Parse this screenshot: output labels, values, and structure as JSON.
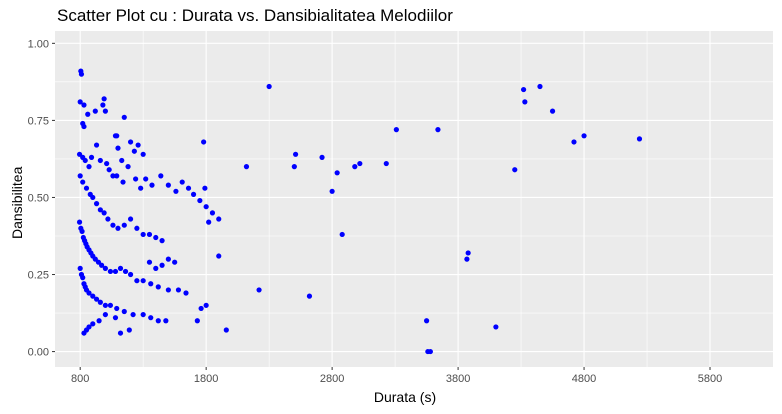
{
  "chart_data": {
    "type": "scatter",
    "title": "Scatter Plot cu : Durata vs. Dansibialitatea Melodiilor",
    "xlabel": "Durata (s)",
    "ylabel": "Dansibilitea",
    "xlim": [
      600,
      6300
    ],
    "ylim": [
      -0.05,
      1.04
    ],
    "x_ticks": [
      800,
      1800,
      2800,
      3800,
      4800,
      5800
    ],
    "y_ticks": [
      0.0,
      0.25,
      0.5,
      0.75,
      1.0
    ],
    "x_tick_labels": [
      "800",
      "1800",
      "2800",
      "3800",
      "4800",
      "5800"
    ],
    "y_tick_labels": [
      "0.00",
      "0.25",
      "0.50",
      "0.75",
      "1.00"
    ],
    "grid": true,
    "colors": {
      "points": "#0000ff",
      "panel": "#ebebeb",
      "grid": "#ffffff"
    },
    "points": [
      [
        805,
        0.91
      ],
      [
        810,
        0.9
      ],
      [
        800,
        0.81
      ],
      [
        820,
        0.74
      ],
      [
        830,
        0.73
      ],
      [
        860,
        0.77
      ],
      [
        830,
        0.8
      ],
      [
        920,
        0.78
      ],
      [
        980,
        0.8
      ],
      [
        990,
        0.82
      ],
      [
        1000,
        0.78
      ],
      [
        1080,
        0.7
      ],
      [
        1090,
        0.7
      ],
      [
        1150,
        0.76
      ],
      [
        1200,
        0.68
      ],
      [
        1260,
        0.67
      ],
      [
        1300,
        0.64
      ],
      [
        1230,
        0.65
      ],
      [
        1130,
        0.62
      ],
      [
        1100,
        0.66
      ],
      [
        795,
        0.64
      ],
      [
        820,
        0.63
      ],
      [
        840,
        0.62
      ],
      [
        870,
        0.6
      ],
      [
        890,
        0.63
      ],
      [
        930,
        0.67
      ],
      [
        960,
        0.62
      ],
      [
        1010,
        0.61
      ],
      [
        1030,
        0.59
      ],
      [
        1060,
        0.57
      ],
      [
        1090,
        0.57
      ],
      [
        1140,
        0.55
      ],
      [
        1180,
        0.6
      ],
      [
        1240,
        0.56
      ],
      [
        1280,
        0.53
      ],
      [
        1320,
        0.56
      ],
      [
        1370,
        0.54
      ],
      [
        1440,
        0.57
      ],
      [
        1500,
        0.54
      ],
      [
        1560,
        0.52
      ],
      [
        1610,
        0.55
      ],
      [
        1660,
        0.53
      ],
      [
        1700,
        0.51
      ],
      [
        1750,
        0.49
      ],
      [
        1800,
        0.47
      ],
      [
        1850,
        0.45
      ],
      [
        1900,
        0.43
      ],
      [
        800,
        0.57
      ],
      [
        820,
        0.55
      ],
      [
        850,
        0.53
      ],
      [
        880,
        0.51
      ],
      [
        900,
        0.5
      ],
      [
        930,
        0.48
      ],
      [
        960,
        0.46
      ],
      [
        990,
        0.45
      ],
      [
        1020,
        0.43
      ],
      [
        1060,
        0.41
      ],
      [
        1100,
        0.4
      ],
      [
        1150,
        0.41
      ],
      [
        1200,
        0.43
      ],
      [
        1250,
        0.4
      ],
      [
        1300,
        0.38
      ],
      [
        1350,
        0.38
      ],
      [
        1400,
        0.37
      ],
      [
        1450,
        0.36
      ],
      [
        795,
        0.42
      ],
      [
        805,
        0.4
      ],
      [
        815,
        0.39
      ],
      [
        825,
        0.37
      ],
      [
        835,
        0.36
      ],
      [
        845,
        0.35
      ],
      [
        855,
        0.34
      ],
      [
        870,
        0.33
      ],
      [
        885,
        0.32
      ],
      [
        900,
        0.31
      ],
      [
        920,
        0.3
      ],
      [
        945,
        0.29
      ],
      [
        970,
        0.28
      ],
      [
        1000,
        0.27
      ],
      [
        1040,
        0.26
      ],
      [
        1080,
        0.26
      ],
      [
        1120,
        0.27
      ],
      [
        1160,
        0.26
      ],
      [
        1200,
        0.25
      ],
      [
        1250,
        0.23
      ],
      [
        1300,
        0.23
      ],
      [
        1360,
        0.22
      ],
      [
        1420,
        0.21
      ],
      [
        1500,
        0.2
      ],
      [
        1580,
        0.2
      ],
      [
        1640,
        0.19
      ],
      [
        800,
        0.27
      ],
      [
        810,
        0.25
      ],
      [
        820,
        0.24
      ],
      [
        830,
        0.22
      ],
      [
        840,
        0.21
      ],
      [
        850,
        0.2
      ],
      [
        870,
        0.19
      ],
      [
        900,
        0.18
      ],
      [
        930,
        0.17
      ],
      [
        960,
        0.16
      ],
      [
        1000,
        0.15
      ],
      [
        1040,
        0.15
      ],
      [
        1090,
        0.14
      ],
      [
        1150,
        0.13
      ],
      [
        1220,
        0.12
      ],
      [
        1300,
        0.12
      ],
      [
        1360,
        0.11
      ],
      [
        1420,
        0.1
      ],
      [
        1480,
        0.1
      ],
      [
        830,
        0.06
      ],
      [
        850,
        0.07
      ],
      [
        870,
        0.08
      ],
      [
        900,
        0.09
      ],
      [
        950,
        0.1
      ],
      [
        1000,
        0.12
      ],
      [
        1080,
        0.11
      ],
      [
        1120,
        0.06
      ],
      [
        1190,
        0.07
      ],
      [
        1350,
        0.29
      ],
      [
        1400,
        0.27
      ],
      [
        1450,
        0.28
      ],
      [
        1500,
        0.3
      ],
      [
        1550,
        0.29
      ],
      [
        1730,
        0.1
      ],
      [
        1760,
        0.14
      ],
      [
        1800,
        0.15
      ],
      [
        1900,
        0.31
      ],
      [
        1960,
        0.07
      ],
      [
        1780,
        0.68
      ],
      [
        1820,
        0.42
      ],
      [
        1790,
        0.53
      ],
      [
        2120,
        0.6
      ],
      [
        2220,
        0.2
      ],
      [
        2300,
        0.86
      ],
      [
        2500,
        0.6
      ],
      [
        2510,
        0.64
      ],
      [
        2620,
        0.18
      ],
      [
        2720,
        0.63
      ],
      [
        2800,
        0.52
      ],
      [
        2840,
        0.58
      ],
      [
        2880,
        0.38
      ],
      [
        2980,
        0.6
      ],
      [
        3020,
        0.61
      ],
      [
        3230,
        0.61
      ],
      [
        3310,
        0.72
      ],
      [
        3550,
        0.1
      ],
      [
        3560,
        0.0
      ],
      [
        3580,
        0.0
      ],
      [
        3640,
        0.72
      ],
      [
        3870,
        0.3
      ],
      [
        3880,
        0.32
      ],
      [
        4100,
        0.08
      ],
      [
        4250,
        0.59
      ],
      [
        4320,
        0.85
      ],
      [
        4330,
        0.81
      ],
      [
        4450,
        0.86
      ],
      [
        4550,
        0.78
      ],
      [
        4720,
        0.68
      ],
      [
        4800,
        0.7
      ],
      [
        5240,
        0.69
      ]
    ]
  }
}
